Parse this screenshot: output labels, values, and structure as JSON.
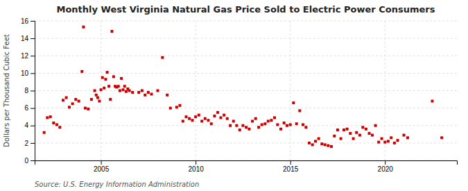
{
  "chart_data": {
    "type": "scatter",
    "title": "Monthly West Virginia Natural Gas Price Sold to Electric Power Consumers",
    "ylabel": "Dollars per Thousand Cubic Feet",
    "annotations": [
      "Source: U.S. Energy Information Administration"
    ],
    "color": "#CC0000",
    "marker": "square",
    "grid": true,
    "xlim": [
      2001.5,
      2023.8
    ],
    "xticks": [
      2005,
      2010,
      2015,
      2020
    ],
    "ylim": [
      0,
      16
    ],
    "yticks": [
      0,
      2,
      4,
      6,
      8,
      10,
      12,
      14,
      16
    ],
    "x": [
      2002.0,
      2002.17,
      2002.33,
      2002.5,
      2002.67,
      2002.83,
      2003.0,
      2003.17,
      2003.33,
      2003.5,
      2003.67,
      2003.83,
      2004.0,
      2004.08,
      2004.17,
      2004.33,
      2004.5,
      2004.67,
      2004.75,
      2004.83,
      2004.92,
      2005.0,
      2005.08,
      2005.17,
      2005.25,
      2005.33,
      2005.42,
      2005.5,
      2005.58,
      2005.67,
      2005.75,
      2005.83,
      2005.92,
      2006.0,
      2006.08,
      2006.17,
      2006.25,
      2006.33,
      2006.42,
      2006.5,
      2006.67,
      2007.0,
      2007.17,
      2007.33,
      2007.5,
      2007.67,
      2008.0,
      2008.25,
      2008.5,
      2008.67,
      2009.0,
      2009.17,
      2009.33,
      2009.5,
      2009.67,
      2009.83,
      2010.0,
      2010.17,
      2010.33,
      2010.5,
      2010.67,
      2010.83,
      2011.0,
      2011.17,
      2011.33,
      2011.5,
      2011.67,
      2011.83,
      2012.0,
      2012.17,
      2012.33,
      2012.5,
      2012.67,
      2012.83,
      2013.0,
      2013.17,
      2013.33,
      2013.5,
      2013.67,
      2013.83,
      2014.0,
      2014.17,
      2014.33,
      2014.5,
      2014.67,
      2014.83,
      2015.0,
      2015.17,
      2015.33,
      2015.5,
      2015.67,
      2015.83,
      2016.0,
      2016.17,
      2016.33,
      2016.5,
      2016.67,
      2016.83,
      2017.0,
      2017.17,
      2017.33,
      2017.5,
      2017.67,
      2017.83,
      2018.0,
      2018.17,
      2018.33,
      2018.5,
      2018.67,
      2018.83,
      2019.0,
      2019.17,
      2019.33,
      2019.5,
      2019.67,
      2019.83,
      2020.0,
      2020.17,
      2020.33,
      2020.5,
      2020.67,
      2021.0,
      2021.2,
      2022.5,
      2023.0
    ],
    "values": [
      3.2,
      4.9,
      5.0,
      4.3,
      4.1,
      3.8,
      6.9,
      7.2,
      6.1,
      6.5,
      7.0,
      6.8,
      10.2,
      15.3,
      6.0,
      5.9,
      7.0,
      8.0,
      7.5,
      7.2,
      6.8,
      8.1,
      9.5,
      8.3,
      9.3,
      10.1,
      8.5,
      7.0,
      14.8,
      9.6,
      8.5,
      8.4,
      8.5,
      8.0,
      9.4,
      8.1,
      8.5,
      7.9,
      8.2,
      8.0,
      7.8,
      7.8,
      8.0,
      7.5,
      7.8,
      7.6,
      8.0,
      11.8,
      7.5,
      6.0,
      6.1,
      6.3,
      4.5,
      5.0,
      4.8,
      4.6,
      5.0,
      5.2,
      4.5,
      4.8,
      4.6,
      4.2,
      5.1,
      5.5,
      4.9,
      5.2,
      4.8,
      4.0,
      4.5,
      4.0,
      3.5,
      4.0,
      3.8,
      3.6,
      4.5,
      4.8,
      3.8,
      4.1,
      4.2,
      4.5,
      4.6,
      4.9,
      4.1,
      3.6,
      4.3,
      4.0,
      4.1,
      6.6,
      4.2,
      5.7,
      4.1,
      3.8,
      2.0,
      1.8,
      2.2,
      2.5,
      1.9,
      1.8,
      1.7,
      1.6,
      2.8,
      3.5,
      2.5,
      3.5,
      3.6,
      3.1,
      2.5,
      3.2,
      2.9,
      3.8,
      3.6,
      3.1,
      2.9,
      4.0,
      2.1,
      2.5,
      2.1,
      2.2,
      2.6,
      2.0,
      2.3,
      2.9,
      2.6,
      6.8,
      2.6
    ]
  }
}
